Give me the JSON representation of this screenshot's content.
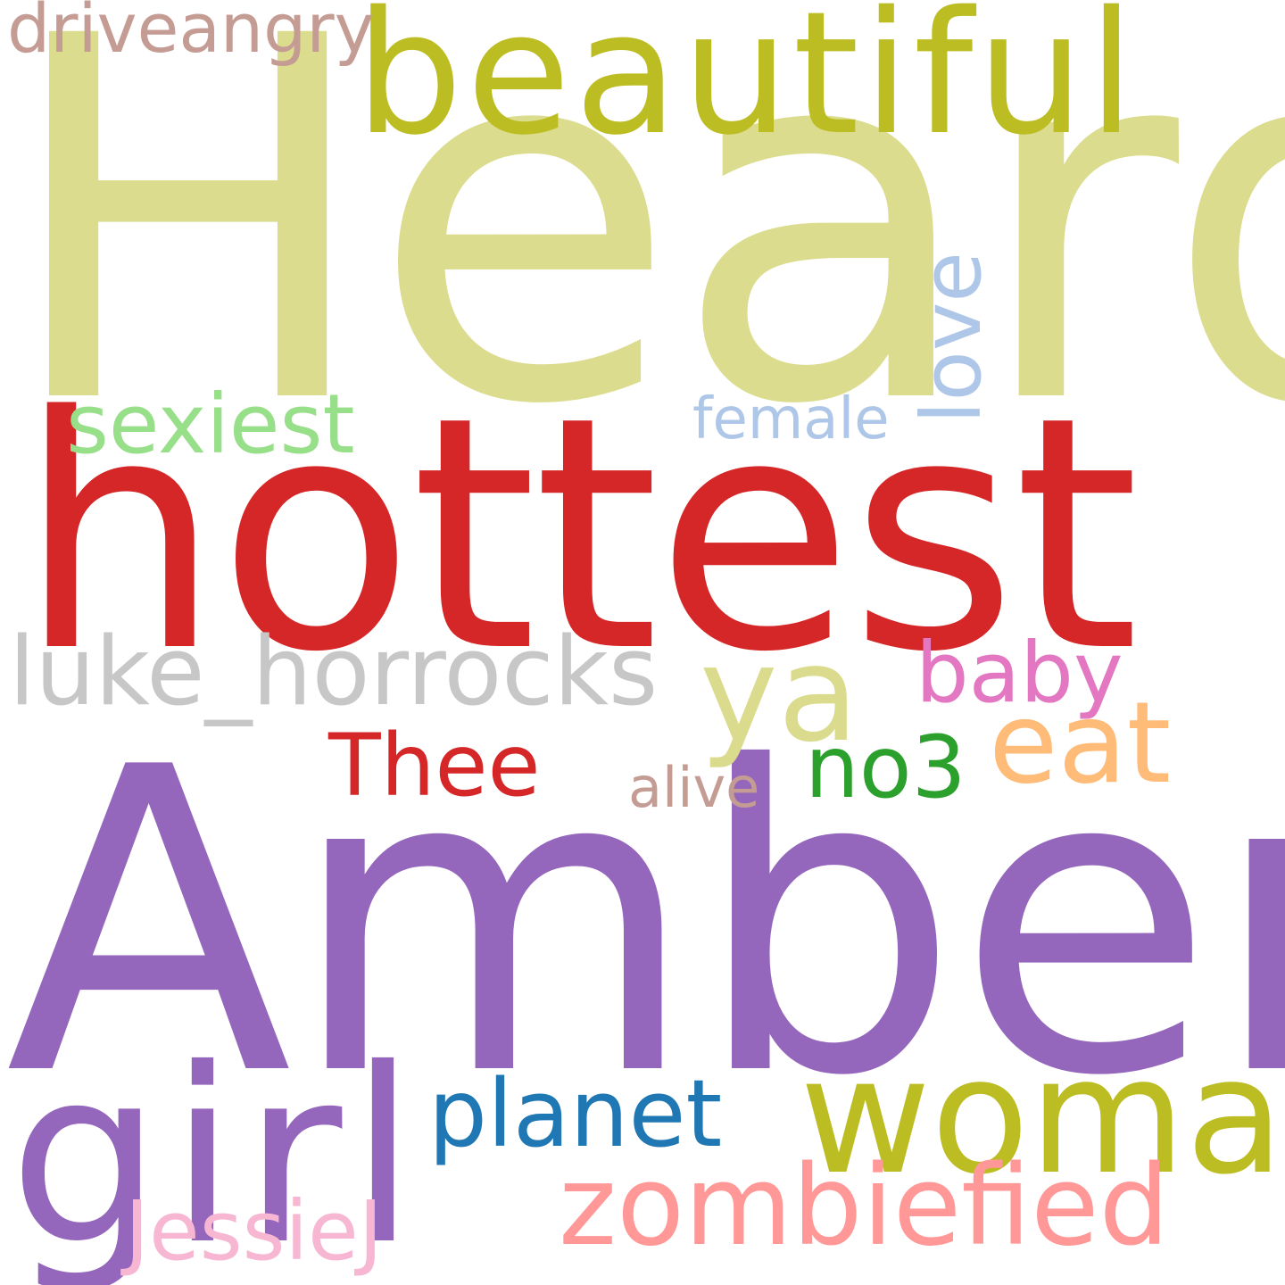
{
  "words": [
    {
      "key": "heard",
      "text": "Heard",
      "color": "#dbdc8d"
    },
    {
      "key": "hottest",
      "text": "hottest",
      "color": "#d62728"
    },
    {
      "key": "amber",
      "text": "Amber",
      "color": "#9467bd"
    },
    {
      "key": "beautiful",
      "text": "beautiful",
      "color": "#bcbd22"
    },
    {
      "key": "woman",
      "text": "woman",
      "color": "#bcbd22"
    },
    {
      "key": "girl",
      "text": "girl",
      "color": "#9467bd"
    },
    {
      "key": "zombiefied",
      "text": "zombiefied",
      "color": "#ff9896"
    },
    {
      "key": "luke",
      "text": "luke_horrocks",
      "color": "#c7c7c7"
    },
    {
      "key": "sexiest",
      "text": "sexiest",
      "color": "#98df8a"
    },
    {
      "key": "ya",
      "text": "ya",
      "color": "#dbdb8d"
    },
    {
      "key": "eat",
      "text": "eat",
      "color": "#ffbb78"
    },
    {
      "key": "planet",
      "text": "planet",
      "color": "#1f77b4"
    },
    {
      "key": "baby",
      "text": "baby",
      "color": "#e377c2"
    },
    {
      "key": "thee",
      "text": "Thee",
      "color": "#d62728"
    },
    {
      "key": "no3",
      "text": "no3",
      "color": "#2ca02c"
    },
    {
      "key": "love",
      "text": "love",
      "color": "#aec7e8"
    },
    {
      "key": "female",
      "text": "female",
      "color": "#aec7e8"
    },
    {
      "key": "driveangry",
      "text": "driveangry",
      "color": "#c49c94"
    },
    {
      "key": "alive",
      "text": "alive",
      "color": "#c49c94"
    },
    {
      "key": "jessiej",
      "text": "JessieJ",
      "color": "#f7b6d2"
    }
  ]
}
